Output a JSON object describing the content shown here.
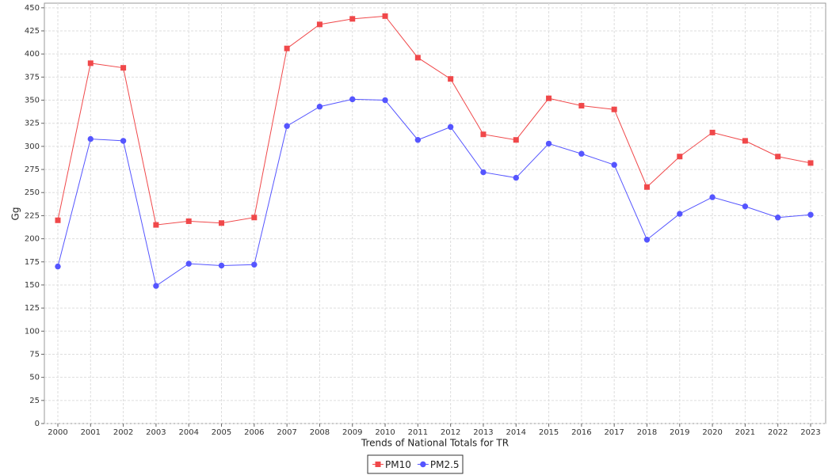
{
  "chart_data": {
    "type": "line",
    "x_label": "Trends of National Totals for TR",
    "y_label": "Gg",
    "categories": [
      "2000",
      "2001",
      "2002",
      "2003",
      "2004",
      "2005",
      "2006",
      "2007",
      "2008",
      "2009",
      "2010",
      "2011",
      "2012",
      "2013",
      "2014",
      "2015",
      "2016",
      "2017",
      "2018",
      "2019",
      "2020",
      "2021",
      "2022",
      "2023"
    ],
    "series": [
      {
        "name": "PM10",
        "color": "#f0484a",
        "marker": "square",
        "values": [
          220,
          390,
          385,
          215,
          219,
          217,
          223,
          406,
          432,
          438,
          441,
          396,
          373,
          313,
          307,
          352,
          344,
          340,
          256,
          289,
          315,
          306,
          289,
          282
        ]
      },
      {
        "name": "PM2.5",
        "color": "#5555ff",
        "marker": "circle",
        "values": [
          170,
          308,
          306,
          149,
          173,
          171,
          172,
          322,
          343,
          351,
          350,
          307,
          321,
          272,
          266,
          303,
          292,
          280,
          199,
          227,
          245,
          235,
          223,
          226
        ]
      }
    ],
    "ylim": [
      0,
      455
    ],
    "yticks": [
      0,
      25,
      50,
      75,
      100,
      125,
      150,
      175,
      200,
      225,
      250,
      275,
      300,
      325,
      350,
      375,
      400,
      425,
      450
    ],
    "grid": true,
    "legend": "bottom"
  }
}
